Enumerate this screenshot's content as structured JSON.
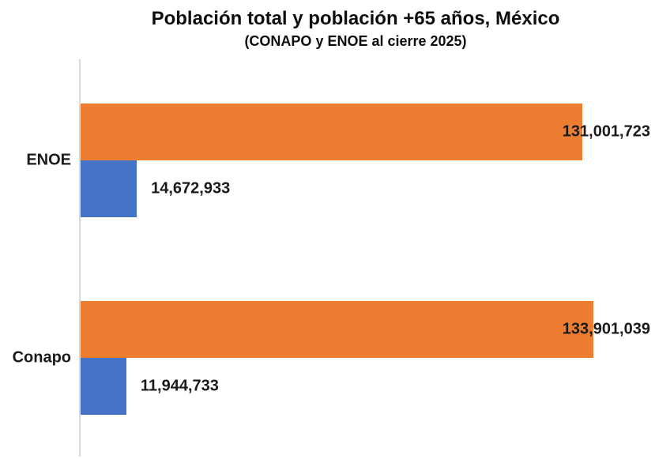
{
  "chart_data": {
    "type": "bar",
    "orientation": "horizontal",
    "title": "Población total y población +65 años, México",
    "subtitle": "(CONAPO y ENOE al cierre 2025)",
    "categories": [
      "ENOE",
      "Conapo"
    ],
    "series": [
      {
        "name": "Población total",
        "color": "#ED7D31",
        "values": [
          131001723,
          133901039
        ],
        "labels": [
          "131,001,723",
          "133,901,039"
        ]
      },
      {
        "name": "Población +65 años",
        "color": "#4472C4",
        "values": [
          14672933,
          11944733
        ],
        "labels": [
          "14,672,933",
          "11,944,733"
        ]
      }
    ],
    "xlim": [
      0,
      150000000
    ],
    "grid": false,
    "legend": false,
    "axis_line_color": "#D9D9D9",
    "label_color": "#1A1A1A"
  }
}
